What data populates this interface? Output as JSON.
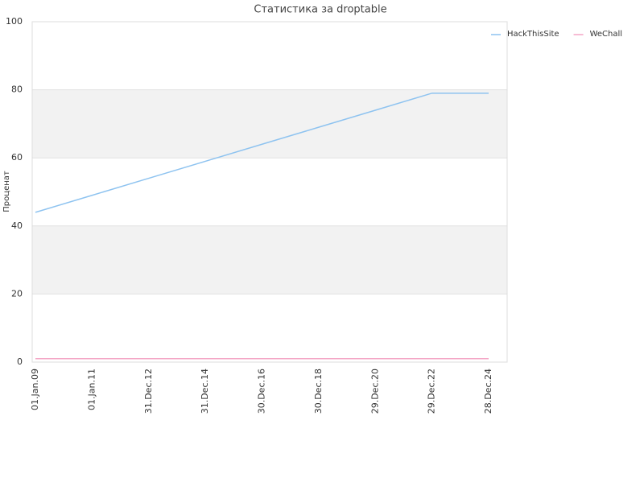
{
  "chart_data": {
    "type": "line",
    "title": "Статистика за droptable",
    "y_label": "Проценат",
    "categories": [
      "01.Jan.09",
      "01.Jan.11",
      "31.Dec.12",
      "31.Dec.14",
      "30.Dec.16",
      "30.Dec.18",
      "29.Dec.20",
      "29.Dec.22",
      "28.Dec.24"
    ],
    "series": [
      {
        "name": "HackThisSite",
        "color": "#8ec3f0",
        "values": [
          44,
          49,
          54,
          59,
          64,
          69,
          74,
          79,
          79
        ]
      },
      {
        "name": "WeChall",
        "color": "#f4a6c6",
        "values": [
          1,
          1,
          1,
          1,
          1,
          1,
          1,
          1,
          1
        ]
      }
    ],
    "ylim": [
      0,
      100
    ],
    "yticks": [
      0,
      20,
      40,
      60,
      80,
      100
    ],
    "grid": true,
    "legend": "top-right"
  }
}
